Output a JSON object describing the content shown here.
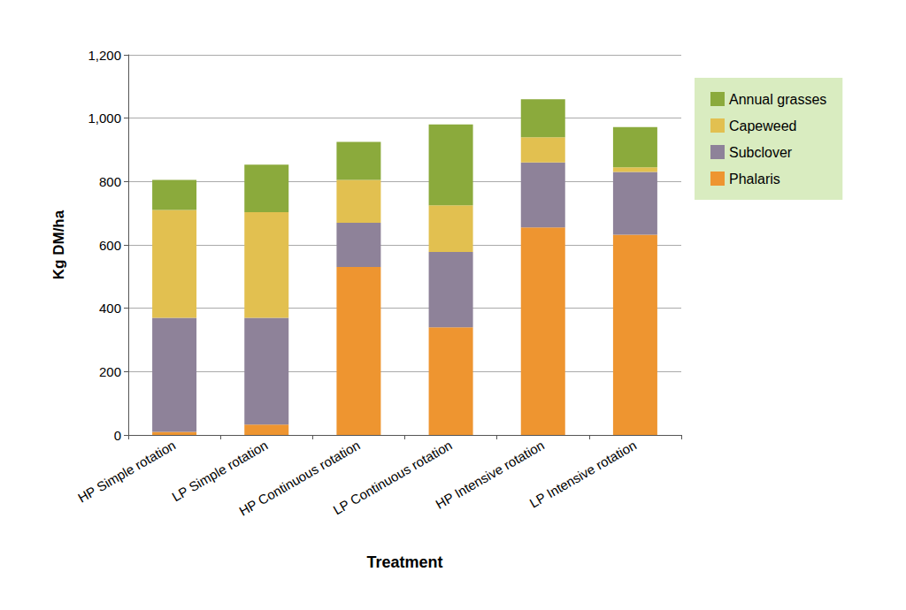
{
  "chart_data": {
    "type": "bar",
    "stacked": true,
    "x_label": "Treatment",
    "y_label": "Kg DM/ha",
    "categories": [
      "HP Simple rotation",
      "LP Simple rotation",
      "HP Continuous rotation",
      "LP Continuous rotation",
      "HP Intensive rotation",
      "LP Intensive rotation"
    ],
    "series": [
      {
        "name": "Phalaris",
        "color": "#ee9530",
        "values": [
          10,
          33,
          530,
          340,
          655,
          632
        ]
      },
      {
        "name": "Subclover",
        "color": "#8e8299",
        "values": [
          360,
          337,
          140,
          238,
          205,
          198
        ]
      },
      {
        "name": "Capeweed",
        "color": "#e2c050",
        "values": [
          340,
          333,
          135,
          147,
          80,
          15
        ]
      },
      {
        "name": "Annual grasses",
        "color": "#8baa3c",
        "values": [
          95,
          150,
          120,
          255,
          120,
          127
        ]
      }
    ],
    "ylim": [
      0,
      1200
    ],
    "yticks": [
      0,
      200,
      400,
      600,
      800,
      1000,
      1200
    ],
    "grid": true,
    "legend": "top-right"
  }
}
